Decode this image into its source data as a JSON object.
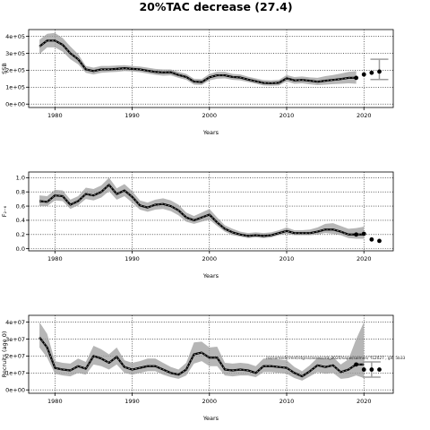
{
  "figure": {
    "title": "20%TAC decrease (27.4)"
  },
  "chart_data": [
    {
      "type": "line",
      "xlabel": "Years",
      "ylabel": "SSB",
      "xlim": [
        1976.6,
        2023.8
      ],
      "ylim": [
        -20000,
        440000
      ],
      "xticks": [
        1980,
        1990,
        2000,
        2010,
        2020
      ],
      "xtick_labels": [
        "1980",
        "1990",
        "2000",
        "2010",
        "2020"
      ],
      "yticks": [
        0,
        100000,
        200000,
        300000,
        400000
      ],
      "ytick_labels": [
        "0e+00",
        "1e+05",
        "2e+05",
        "3e+05",
        "4e+05"
      ],
      "grid": true,
      "series": [
        {
          "role": "estimate",
          "x": [
            1978,
            1979,
            1980,
            1981,
            1982,
            1983,
            1984,
            1985,
            1986,
            1987,
            1988,
            1989,
            1990,
            1991,
            1992,
            1993,
            1994,
            1995,
            1996,
            1997,
            1998,
            1999,
            2000,
            2001,
            2002,
            2003,
            2004,
            2005,
            2006,
            2007,
            2008,
            2009,
            2010,
            2011,
            2012,
            2013,
            2014,
            2015,
            2016,
            2017,
            2018,
            2019
          ],
          "y": [
            340000,
            375000,
            375000,
            350000,
            300000,
            265000,
            205000,
            195000,
            205000,
            205000,
            208000,
            212000,
            208000,
            205000,
            197000,
            190000,
            187000,
            188000,
            172000,
            160000,
            133000,
            130000,
            158000,
            170000,
            170000,
            160000,
            157000,
            145000,
            135000,
            125000,
            123000,
            126000,
            152000,
            140000,
            143000,
            138000,
            132000,
            138000,
            143000,
            148000,
            155000,
            155000
          ],
          "lower": [
            295000,
            335000,
            335000,
            310000,
            265000,
            235000,
            185000,
            175000,
            185000,
            188000,
            190000,
            195000,
            193000,
            188000,
            180000,
            173000,
            168000,
            170000,
            155000,
            143000,
            115000,
            113000,
            140000,
            150000,
            152000,
            143000,
            140000,
            130000,
            120000,
            110000,
            108000,
            110000,
            133000,
            120000,
            123000,
            117000,
            112000,
            115000,
            118000,
            120000,
            123000,
            120000
          ],
          "upper": [
            380000,
            415000,
            420000,
            390000,
            340000,
            295000,
            225000,
            215000,
            225000,
            225000,
            228000,
            230000,
            225000,
            222000,
            215000,
            208000,
            205000,
            205000,
            190000,
            178000,
            150000,
            148000,
            178000,
            190000,
            190000,
            178000,
            175000,
            162000,
            152000,
            142000,
            140000,
            143000,
            172000,
            160000,
            163000,
            158000,
            155000,
            165000,
            172000,
            180000,
            190000,
            195000
          ]
        },
        {
          "role": "projection",
          "x": [
            2019,
            2020,
            2021,
            2022
          ],
          "y": [
            155000,
            175000,
            185000,
            192000
          ]
        }
      ],
      "final_interval": {
        "x": 2022,
        "y": 192000,
        "lower": 145000,
        "upper": 265000
      }
    },
    {
      "type": "line",
      "xlabel": "Years",
      "ylabel": "F₂₋₆",
      "xlim": [
        1976.6,
        2023.8
      ],
      "ylim": [
        -0.03,
        1.08
      ],
      "xticks": [
        1980,
        1990,
        2000,
        2010,
        2020
      ],
      "xtick_labels": [
        "1980",
        "1990",
        "2000",
        "2010",
        "2020"
      ],
      "yticks": [
        0,
        0.2,
        0.4,
        0.6,
        0.8,
        1.0
      ],
      "ytick_labels": [
        "0.0",
        "0.2",
        "0.4",
        "0.6",
        "0.8",
        "1.0"
      ],
      "grid": true,
      "series": [
        {
          "role": "estimate",
          "x": [
            1978,
            1979,
            1980,
            1981,
            1982,
            1983,
            1984,
            1985,
            1986,
            1987,
            1988,
            1989,
            1990,
            1991,
            1992,
            1993,
            1994,
            1995,
            1996,
            1997,
            1998,
            1999,
            2000,
            2001,
            2002,
            2003,
            2004,
            2005,
            2006,
            2007,
            2008,
            2009,
            2010,
            2011,
            2012,
            2013,
            2014,
            2015,
            2016,
            2017,
            2018,
            2019,
            2020
          ],
          "y": [
            0.67,
            0.66,
            0.75,
            0.74,
            0.62,
            0.67,
            0.77,
            0.75,
            0.8,
            0.9,
            0.77,
            0.82,
            0.73,
            0.61,
            0.58,
            0.62,
            0.63,
            0.6,
            0.54,
            0.44,
            0.4,
            0.44,
            0.48,
            0.37,
            0.28,
            0.23,
            0.2,
            0.18,
            0.19,
            0.18,
            0.19,
            0.22,
            0.25,
            0.22,
            0.22,
            0.22,
            0.24,
            0.27,
            0.27,
            0.24,
            0.2,
            0.2,
            0.2
          ],
          "lower": [
            0.6,
            0.6,
            0.68,
            0.67,
            0.56,
            0.61,
            0.7,
            0.68,
            0.72,
            0.81,
            0.69,
            0.74,
            0.65,
            0.55,
            0.52,
            0.55,
            0.56,
            0.53,
            0.47,
            0.38,
            0.35,
            0.38,
            0.41,
            0.32,
            0.24,
            0.19,
            0.17,
            0.15,
            0.16,
            0.15,
            0.16,
            0.19,
            0.21,
            0.19,
            0.19,
            0.19,
            0.2,
            0.22,
            0.21,
            0.19,
            0.15,
            0.14,
            0.14
          ],
          "upper": [
            0.75,
            0.74,
            0.83,
            0.82,
            0.69,
            0.74,
            0.86,
            0.84,
            0.89,
            1.0,
            0.85,
            0.91,
            0.81,
            0.68,
            0.65,
            0.69,
            0.71,
            0.68,
            0.62,
            0.51,
            0.46,
            0.51,
            0.56,
            0.44,
            0.33,
            0.28,
            0.24,
            0.22,
            0.23,
            0.22,
            0.23,
            0.26,
            0.3,
            0.26,
            0.26,
            0.27,
            0.3,
            0.35,
            0.36,
            0.32,
            0.28,
            0.29,
            0.31
          ]
        },
        {
          "role": "projection",
          "x": [
            2019,
            2020,
            2021,
            2022
          ],
          "y": [
            0.2,
            0.21,
            0.13,
            0.11
          ]
        }
      ]
    },
    {
      "type": "line",
      "xlabel": "Years",
      "ylabel": "Recruits (age 0)",
      "xlim": [
        1976.6,
        2023.8
      ],
      "ylim": [
        -2000000,
        44000000
      ],
      "xticks": [
        1980,
        1990,
        2000,
        2010,
        2020
      ],
      "xtick_labels": [
        "1980",
        "1990",
        "2000",
        "2010",
        "2020"
      ],
      "yticks": [
        0,
        10000000,
        20000000,
        30000000,
        40000000
      ],
      "ytick_labels": [
        "0e+00",
        "1e+07",
        "2e+07",
        "3e+07",
        "4e+07"
      ],
      "grid": true,
      "series": [
        {
          "role": "estimate",
          "x": [
            1978,
            1979,
            1980,
            1981,
            1982,
            1983,
            1984,
            1985,
            1986,
            1987,
            1988,
            1989,
            1990,
            1991,
            1992,
            1993,
            1994,
            1995,
            1996,
            1997,
            1998,
            1999,
            2000,
            2001,
            2002,
            2003,
            2004,
            2005,
            2006,
            2007,
            2008,
            2009,
            2010,
            2011,
            2012,
            2013,
            2014,
            2015,
            2016,
            2017,
            2018,
            2019,
            2020
          ],
          "y": [
            31000000,
            25000000,
            13000000,
            12000000,
            11500000,
            14000000,
            12500000,
            20000000,
            18500000,
            16000000,
            19500000,
            13500000,
            12000000,
            13000000,
            14000000,
            14000000,
            12000000,
            10000000,
            9000000,
            12000000,
            21000000,
            22000000,
            19000000,
            19000000,
            12000000,
            11500000,
            12000000,
            11500000,
            10000000,
            14000000,
            14000000,
            13500000,
            13000000,
            10000000,
            8000000,
            11000000,
            14500000,
            13500000,
            14500000,
            10500000,
            12000000,
            15000000,
            15000000
          ],
          "lower": [
            25000000,
            19000000,
            9500000,
            8500000,
            8000000,
            10000000,
            9000000,
            15000000,
            14000000,
            12000000,
            15000000,
            10000000,
            9000000,
            10000000,
            11000000,
            11000000,
            9000000,
            7500000,
            6500000,
            8500000,
            15500000,
            17000000,
            14000000,
            14000000,
            8500000,
            8000000,
            8500000,
            8500000,
            7500000,
            10500000,
            10500000,
            10000000,
            9500000,
            7000000,
            5500000,
            8000000,
            10500000,
            9500000,
            10000000,
            6500000,
            7000000,
            8500000,
            7000000
          ],
          "upper": [
            40000000,
            33000000,
            17000000,
            16000000,
            15500000,
            18500000,
            16500000,
            26000000,
            24000000,
            21000000,
            25000000,
            17500000,
            16000000,
            17000000,
            18500000,
            18500000,
            16000000,
            13500000,
            12000000,
            16000000,
            28000000,
            28500000,
            25000000,
            25500000,
            16000000,
            15500000,
            16000000,
            15500000,
            14000000,
            18500000,
            18500000,
            18000000,
            17500000,
            13500000,
            11000000,
            14500000,
            19000000,
            18500000,
            19500000,
            15000000,
            18000000,
            30000000,
            40000000
          ]
        },
        {
          "role": "projection",
          "x": [
            2019,
            2020,
            2021,
            2022
          ],
          "y": [
            15000000,
            12000000,
            12000000,
            12000000
          ]
        }
      ],
      "final_interval": {
        "x": 2021,
        "y": 12000000,
        "lower": 7500000,
        "upper": 16500000
      },
      "annotation": "/ss/somedir/mnt/stg/ss/assessmt_2020/sapw/salmon/ YL2027 , git: 5b33"
    }
  ]
}
